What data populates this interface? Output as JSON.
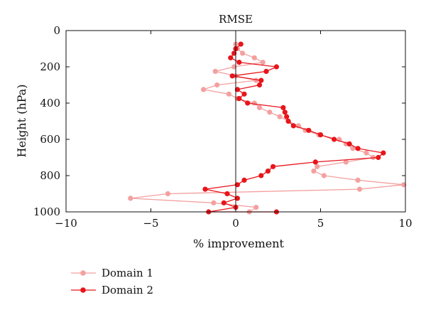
{
  "chart_data": {
    "type": "line",
    "title": "RMSE",
    "xlabel": "% improvement",
    "ylabel": "Height (hPa)",
    "xlim": [
      -10,
      10
    ],
    "ylim": [
      0,
      1000
    ],
    "y_inverted": true,
    "xticks": [
      "−10",
      "−5",
      "0",
      "5",
      "10"
    ],
    "yticks": [
      "0",
      "200",
      "400",
      "600",
      "800",
      "1000"
    ],
    "grid": false,
    "legend_position": "bottom-left",
    "series": [
      {
        "name": "Domain 1",
        "color": "#f4a0a0",
        "points": [
          [
            0,
            75
          ],
          [
            0.1,
            100
          ],
          [
            0.4,
            125
          ],
          [
            1.1,
            150
          ],
          [
            1.6,
            175
          ],
          [
            -0.1,
            200
          ],
          [
            -1.2,
            225
          ],
          [
            0,
            250
          ],
          [
            1.2,
            275
          ],
          [
            -1.1,
            300
          ],
          [
            -1.9,
            325
          ],
          [
            -0.4,
            350
          ],
          [
            0.1,
            375
          ],
          [
            1.1,
            400
          ],
          [
            1.4,
            425
          ],
          [
            2.0,
            450
          ],
          [
            2.6,
            475
          ],
          [
            3.1,
            500
          ],
          [
            3.7,
            525
          ],
          [
            4.1,
            550
          ],
          [
            4.9,
            575
          ],
          [
            6.1,
            600
          ],
          [
            6.5,
            625
          ],
          [
            6.9,
            650
          ],
          [
            7.7,
            675
          ],
          [
            8.1,
            700
          ],
          [
            6.5,
            725
          ],
          [
            4.8,
            750
          ],
          [
            4.6,
            775
          ],
          [
            5.2,
            800
          ],
          [
            7.2,
            825
          ],
          [
            9.9,
            850
          ],
          [
            7.3,
            875
          ],
          [
            -4.0,
            900
          ],
          [
            -6.2,
            925
          ],
          [
            -1.3,
            950
          ],
          [
            1.2,
            975
          ],
          [
            0.8,
            1000
          ]
        ]
      },
      {
        "name": "Domain 2",
        "color": "#e8151b",
        "points": [
          [
            0.3,
            75
          ],
          [
            0,
            100
          ],
          [
            -0.1,
            125
          ],
          [
            -0.3,
            150
          ],
          [
            0.2,
            175
          ],
          [
            2.4,
            200
          ],
          [
            1.8,
            225
          ],
          [
            -0.2,
            250
          ],
          [
            1.5,
            275
          ],
          [
            1.4,
            300
          ],
          [
            0.1,
            325
          ],
          [
            0.5,
            350
          ],
          [
            0.2,
            375
          ],
          [
            0.7,
            400
          ],
          [
            2.8,
            425
          ],
          [
            2.9,
            450
          ],
          [
            3.0,
            475
          ],
          [
            3.1,
            500
          ],
          [
            3.4,
            525
          ],
          [
            4.3,
            550
          ],
          [
            5.0,
            575
          ],
          [
            5.8,
            600
          ],
          [
            6.7,
            625
          ],
          [
            7.2,
            650
          ],
          [
            8.7,
            675
          ],
          [
            8.4,
            700
          ],
          [
            4.7,
            725
          ],
          [
            2.2,
            750
          ],
          [
            1.9,
            775
          ],
          [
            1.5,
            800
          ],
          [
            0.5,
            825
          ],
          [
            0.1,
            850
          ],
          [
            -1.8,
            875
          ],
          [
            -0.5,
            900
          ],
          [
            0.1,
            925
          ],
          [
            -0.7,
            950
          ],
          [
            0,
            975
          ],
          [
            -1.6,
            1000
          ],
          [
            2.4,
            1000
          ]
        ]
      }
    ]
  }
}
